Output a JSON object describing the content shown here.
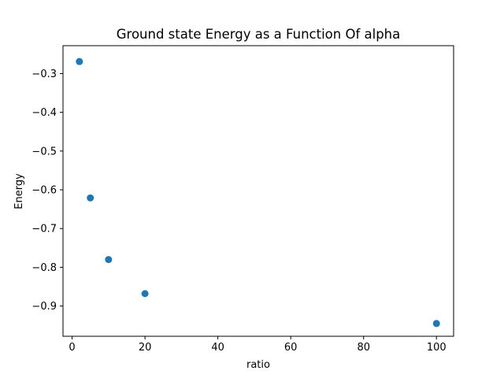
{
  "chart_data": {
    "type": "scatter",
    "title": "Ground state Energy as a Function Of alpha",
    "xlabel": "ratio",
    "ylabel": "Energy",
    "xlim": [
      -2.5,
      104.7
    ],
    "ylim": [
      -0.978,
      -0.228
    ],
    "xticks": [
      {
        "value": 0,
        "label": "0"
      },
      {
        "value": 20,
        "label": "20"
      },
      {
        "value": 40,
        "label": "40"
      },
      {
        "value": 60,
        "label": "60"
      },
      {
        "value": 80,
        "label": "80"
      },
      {
        "value": 100,
        "label": "100"
      }
    ],
    "yticks": [
      {
        "value": -0.9,
        "label": "−0.9"
      },
      {
        "value": -0.8,
        "label": "−0.8"
      },
      {
        "value": -0.7,
        "label": "−0.7"
      },
      {
        "value": -0.6,
        "label": "−0.6"
      },
      {
        "value": -0.5,
        "label": "−0.5"
      },
      {
        "value": -0.4,
        "label": "−0.4"
      },
      {
        "value": -0.3,
        "label": "−0.3"
      }
    ],
    "series": [
      {
        "x": [
          2,
          5,
          10,
          20,
          100
        ],
        "y": [
          -0.269,
          -0.621,
          -0.78,
          -0.868,
          -0.945
        ],
        "color": "#1f77b4"
      }
    ],
    "grid": false,
    "legend": false
  }
}
